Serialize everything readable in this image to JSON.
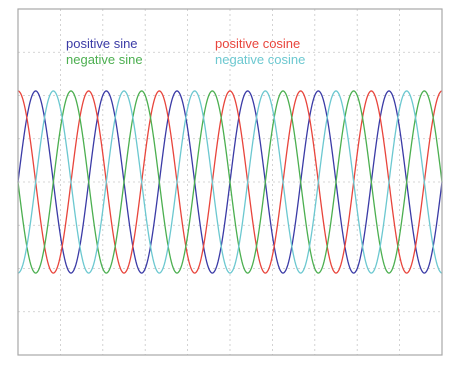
{
  "chart_data": {
    "type": "line",
    "title": "",
    "xlabel": "",
    "ylabel": "",
    "grid": true,
    "legend_placement": "top-left",
    "xlim": [
      0,
      6
    ],
    "ylim": [
      -1.9,
      1.9
    ],
    "x_divisions": 10,
    "y_divisions": 8,
    "cycles": 6,
    "amplitude": 1,
    "series": [
      {
        "name": "positive sine",
        "color": "#3b3ba6",
        "function": "sin",
        "sign": 1
      },
      {
        "name": "positive cosine",
        "color": "#e8453c",
        "function": "cos",
        "sign": 1
      },
      {
        "name": "negative sine",
        "color": "#4caf50",
        "function": "sin",
        "sign": -1
      },
      {
        "name": "negative cosine",
        "color": "#6cc8d0",
        "function": "cos",
        "sign": -1
      }
    ]
  },
  "colors": {
    "background": "#ffffff",
    "frame": "#a8a8a8",
    "grid": "#c8c8c8"
  }
}
